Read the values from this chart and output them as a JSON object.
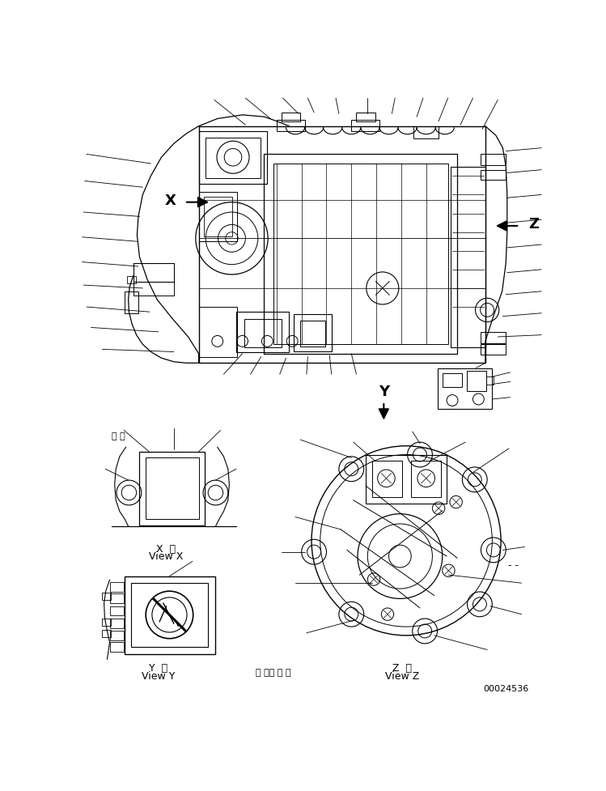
{
  "bg_color": "#ffffff",
  "line_color": "#000000",
  "fig_width": 7.49,
  "fig_height": 9.77,
  "dpi": 100,
  "part_number": "00024536",
  "arrow_x_label": "X",
  "arrow_y_label": "Y",
  "arrow_z_label": "Z",
  "label_x_view_1": "X  視",
  "label_x_view_2": "View X",
  "label_y_view_1": "Y  視",
  "label_y_view_2": "View Y",
  "label_z_view_1": "Z  視",
  "label_z_view_2": "View Z",
  "dots_bottom": "・ ・， ・ ・",
  "side_note": "- -",
  "comma_top": "， ，"
}
